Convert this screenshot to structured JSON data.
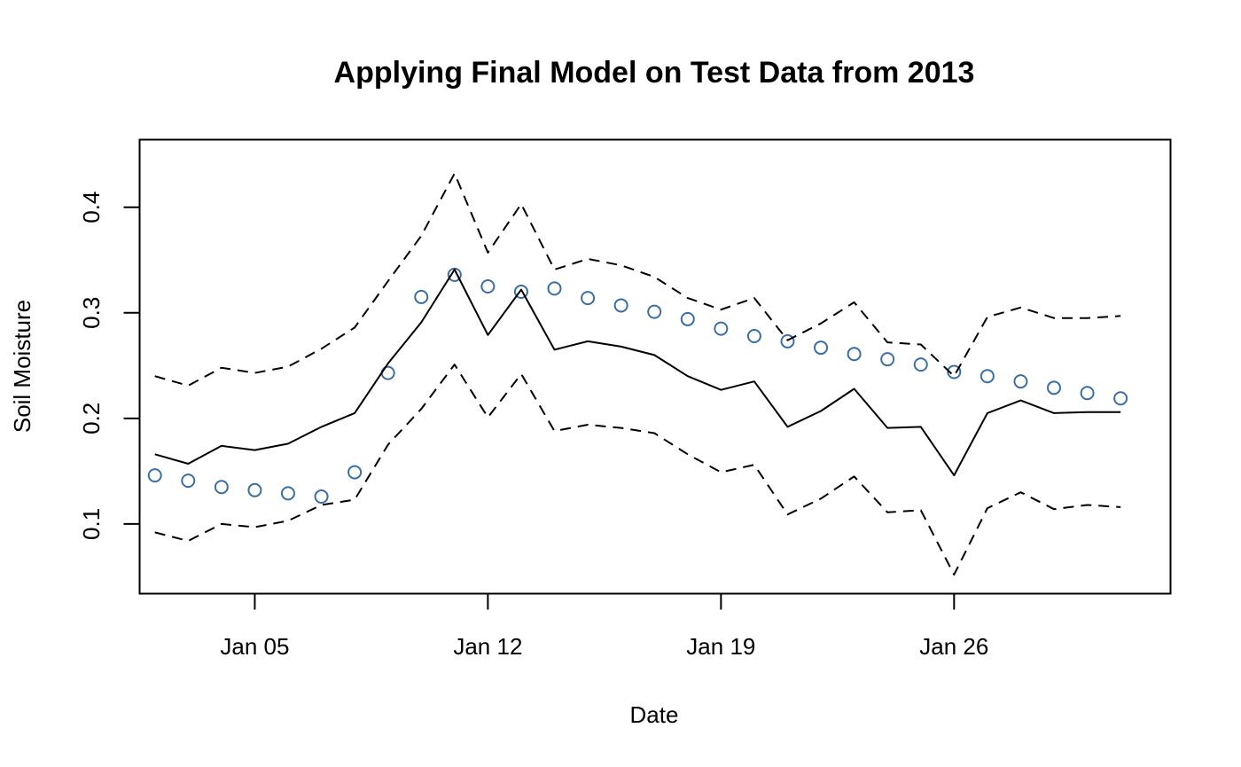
{
  "chart_data": {
    "type": "line",
    "title": "Applying Final Model on Test Data from 2013",
    "xlabel": "Date",
    "ylabel": "Soil Moisture",
    "x": [
      "2013-01-02",
      "2013-01-03",
      "2013-01-04",
      "2013-01-05",
      "2013-01-06",
      "2013-01-07",
      "2013-01-08",
      "2013-01-09",
      "2013-01-10",
      "2013-01-11",
      "2013-01-12",
      "2013-01-13",
      "2013-01-14",
      "2013-01-15",
      "2013-01-16",
      "2013-01-17",
      "2013-01-18",
      "2013-01-19",
      "2013-01-20",
      "2013-01-21",
      "2013-01-22",
      "2013-01-23",
      "2013-01-24",
      "2013-01-25",
      "2013-01-26",
      "2013-01-27",
      "2013-01-28",
      "2013-01-29",
      "2013-01-30",
      "2013-01-31"
    ],
    "xlim": [
      "2013-01-01T13:00",
      "2013-02-01T12:00"
    ],
    "ylim": [
      0.034,
      0.464
    ],
    "x_ticks": [
      {
        "date": "2013-01-05",
        "label": "Jan 05"
      },
      {
        "date": "2013-01-12",
        "label": "Jan 12"
      },
      {
        "date": "2013-01-19",
        "label": "Jan 19"
      },
      {
        "date": "2013-01-26",
        "label": "Jan 26"
      }
    ],
    "y_ticks": [
      {
        "value": 0.1,
        "label": "0.1"
      },
      {
        "value": 0.2,
        "label": "0.2"
      },
      {
        "value": 0.3,
        "label": "0.3"
      },
      {
        "value": 0.4,
        "label": "0.4"
      }
    ],
    "series": [
      {
        "style": "points",
        "color": "#3A6EA5",
        "values": [
          0.146,
          0.141,
          0.135,
          0.132,
          0.129,
          0.126,
          0.149,
          0.243,
          0.315,
          0.336,
          0.325,
          0.32,
          0.323,
          0.314,
          0.307,
          0.301,
          0.294,
          0.285,
          0.278,
          0.273,
          0.267,
          0.261,
          0.256,
          0.251,
          0.244,
          0.24,
          0.235,
          0.229,
          0.224,
          0.219
        ]
      },
      {
        "style": "solid",
        "color": "#000000",
        "values": [
          0.166,
          0.157,
          0.174,
          0.17,
          0.176,
          0.192,
          0.205,
          0.252,
          0.291,
          0.341,
          0.279,
          0.322,
          0.265,
          0.273,
          0.268,
          0.26,
          0.24,
          0.227,
          0.235,
          0.192,
          0.207,
          0.228,
          0.191,
          0.192,
          0.146,
          0.205,
          0.217,
          0.205,
          0.206,
          0.206
        ]
      },
      {
        "style": "dashed",
        "color": "#000000",
        "values": [
          0.24,
          0.231,
          0.248,
          0.243,
          0.249,
          0.266,
          0.286,
          0.33,
          0.373,
          0.432,
          0.357,
          0.403,
          0.341,
          0.351,
          0.345,
          0.334,
          0.314,
          0.303,
          0.314,
          0.274,
          0.29,
          0.31,
          0.272,
          0.27,
          0.24,
          0.296,
          0.305,
          0.295,
          0.295,
          0.297
        ]
      },
      {
        "style": "dashed",
        "color": "#000000",
        "values": [
          0.092,
          0.084,
          0.1,
          0.097,
          0.103,
          0.118,
          0.123,
          0.175,
          0.209,
          0.251,
          0.201,
          0.242,
          0.188,
          0.194,
          0.191,
          0.186,
          0.166,
          0.149,
          0.156,
          0.109,
          0.124,
          0.145,
          0.111,
          0.113,
          0.052,
          0.115,
          0.13,
          0.114,
          0.118,
          0.116
        ]
      }
    ]
  }
}
